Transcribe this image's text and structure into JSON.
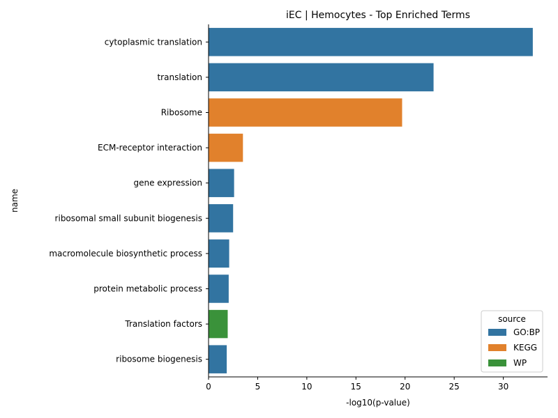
{
  "chart_data": {
    "type": "bar",
    "orientation": "horizontal",
    "title": "iEC | Hemocytes - Top Enriched Terms",
    "xlabel": "-log10(p-value)",
    "ylabel": "name",
    "xlim": [
      0,
      34.5
    ],
    "xticks": [
      0,
      5,
      10,
      15,
      20,
      25,
      30
    ],
    "categories": [
      "cytoplasmic translation",
      "translation",
      "Ribosome",
      "ECM-receptor interaction",
      "gene expression",
      "ribosomal small subunit biogenesis",
      "macromolecule biosynthetic process",
      "protein metabolic process",
      "Translation factors",
      "ribosome biogenesis"
    ],
    "values": [
      33.0,
      22.9,
      19.7,
      3.5,
      2.6,
      2.5,
      2.1,
      2.05,
      1.95,
      1.85
    ],
    "sources": [
      "GO:BP",
      "GO:BP",
      "KEGG",
      "KEGG",
      "GO:BP",
      "GO:BP",
      "GO:BP",
      "GO:BP",
      "WP",
      "GO:BP"
    ],
    "legend": {
      "title": "source",
      "position": "lower-right",
      "entries": [
        {
          "name": "GO:BP",
          "color": "#3274a1"
        },
        {
          "name": "KEGG",
          "color": "#e1812c"
        },
        {
          "name": "WP",
          "color": "#3a923a"
        }
      ]
    }
  }
}
